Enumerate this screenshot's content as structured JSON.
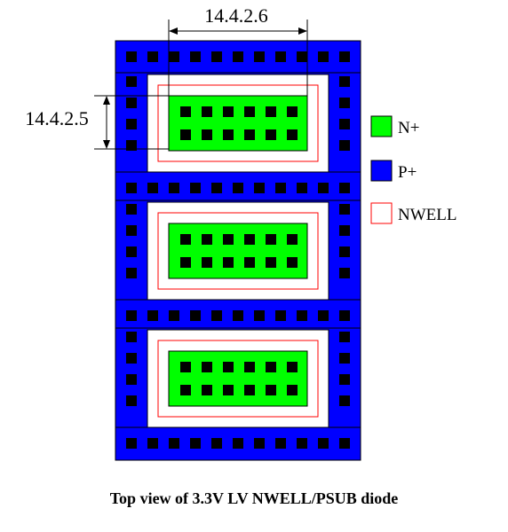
{
  "dimensions": {
    "top_width_label": "14.4.2.6",
    "left_height_label": "14.4.2.5"
  },
  "legend": [
    {
      "label": "N+",
      "fill": "#00ff00",
      "stroke": "#000000"
    },
    {
      "label": "P+",
      "fill": "#0000ff",
      "stroke": "#000000"
    },
    {
      "label": "NWELL",
      "fill": "#ffffff",
      "stroke": "#ff0000"
    }
  ],
  "caption": "Top view of 3.3V LV NWELL/PSUB diode",
  "colors": {
    "p_plus": "#0000ff",
    "n_plus": "#00ff00",
    "nwell": "#ff0000",
    "contact": "#000000"
  },
  "diode_cells": 3,
  "contacts_per_n_plus": {
    "columns": 6,
    "rows": 2
  }
}
